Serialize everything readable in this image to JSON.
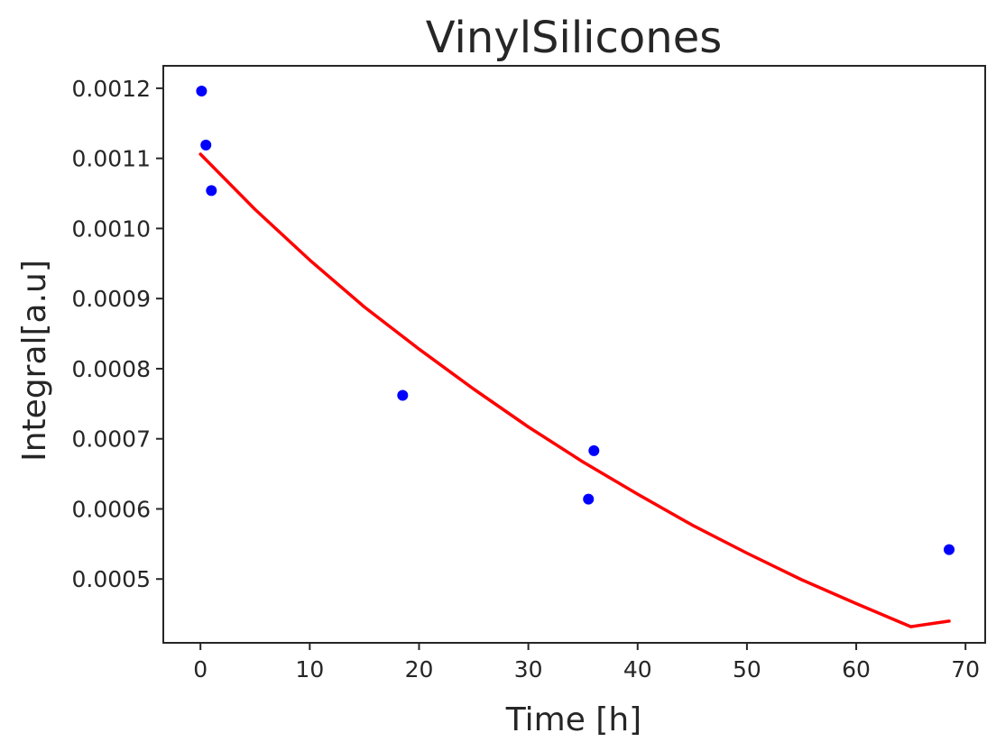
{
  "chart_data": {
    "type": "scatter",
    "title": "VinylSilicones",
    "xlabel": "Time [h]",
    "ylabel": "Integral[a.u]",
    "xlim": [
      -3.4,
      71.8
    ],
    "ylim": [
      0.000409,
      0.001232
    ],
    "grid": false,
    "x_ticks": [
      0,
      10,
      20,
      30,
      40,
      50,
      60,
      70
    ],
    "x_tick_labels": [
      "0",
      "10",
      "20",
      "30",
      "40",
      "50",
      "60",
      "70"
    ],
    "y_ticks": [
      0.0005,
      0.0006,
      0.0007,
      0.0008,
      0.0009,
      0.001,
      0.0011,
      0.0012
    ],
    "y_tick_labels": [
      "0.0005",
      "0.0006",
      "0.0007",
      "0.0008",
      "0.0009",
      "0.0010",
      "0.0011",
      "0.0012"
    ],
    "series": [
      {
        "kind": "points",
        "color": "#0000ff",
        "x": [
          0.1,
          0.5,
          1.0,
          18.5,
          35.5,
          36.0,
          68.5
        ],
        "y": [
          0.001196,
          0.001119,
          0.001054,
          0.000762,
          0.000614,
          0.000683,
          0.000542
        ]
      },
      {
        "kind": "fit-line",
        "color": "#ff0000",
        "x": [
          0,
          5,
          10,
          15,
          20,
          25,
          30,
          35,
          40,
          45,
          50,
          55,
          60,
          65,
          68.5
        ],
        "y": [
          0.001106,
          0.001027,
          0.000955,
          0.000888,
          0.000828,
          0.000771,
          0.000717,
          0.000667,
          0.000621,
          0.000577,
          0.000537,
          0.000499,
          0.000465,
          0.000432,
          0.00044
        ]
      }
    ]
  }
}
